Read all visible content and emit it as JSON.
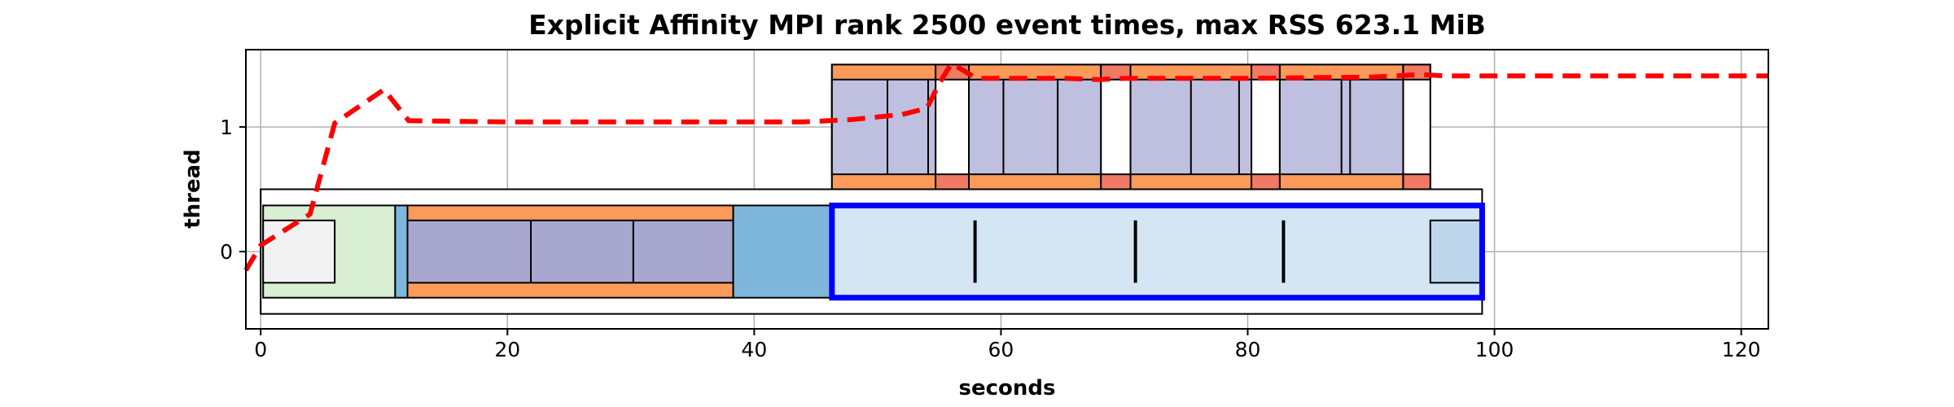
{
  "chart_data": {
    "type": "timeline",
    "title": "Explicit Affinity MPI rank 2500 event times, max RSS 623.1 MiB",
    "xlabel": "seconds",
    "ylabel": "thread",
    "xlim": [
      -1.2,
      122.2
    ],
    "ylim": [
      -0.62,
      1.62
    ],
    "x_ticks": [
      0,
      20,
      40,
      60,
      80,
      100,
      120
    ],
    "y_ticks": [
      0,
      1
    ],
    "grid": true,
    "colors": {
      "outline": "#000000",
      "memory_line": "#ff0000",
      "highlight": "#0000ff",
      "orange": "#fc9a5a",
      "salmon": "#f07a63",
      "purple": "#a8a7d0",
      "lavender": "#bfbfdf",
      "blue": "#7fb7dc",
      "light_blue": "#d4e5f3",
      "pale_blue": "#bdd6ec",
      "green": "#d9efd4",
      "gray": "#f2f2f2",
      "white": "#ffffff"
    },
    "boxes": [
      {
        "x0": 0,
        "x1": 99,
        "y0": -0.5,
        "y1": 0.5,
        "color": "white"
      },
      {
        "x0": 0.2,
        "x1": 10.9,
        "y0": -0.37,
        "y1": 0.37,
        "color": "green"
      },
      {
        "x0": 0.2,
        "x1": 6,
        "y0": -0.25,
        "y1": 0.25,
        "color": "gray"
      },
      {
        "x0": 10.9,
        "x1": 11.9,
        "y0": -0.37,
        "y1": 0.37,
        "color": "blue"
      },
      {
        "x0": 11.9,
        "x1": 38.3,
        "y0": -0.37,
        "y1": 0.37,
        "color": "orange"
      },
      {
        "x0": 11.9,
        "x1": 38.3,
        "y0": -0.25,
        "y1": 0.25,
        "color": "purple"
      },
      {
        "x0": 21.9,
        "x1": 21.9,
        "y0": -0.25,
        "y1": 0.25,
        "color": "outline"
      },
      {
        "x0": 30.2,
        "x1": 30.2,
        "y0": -0.25,
        "y1": 0.25,
        "color": "outline"
      },
      {
        "x0": 38.3,
        "x1": 46.3,
        "y0": -0.37,
        "y1": 0.37,
        "color": "blue"
      },
      {
        "x0": 46.3,
        "x1": 99,
        "y0": -0.37,
        "y1": 0.37,
        "color": "light_blue"
      },
      {
        "x0": 94.8,
        "x1": 99,
        "y0": -0.25,
        "y1": 0.25,
        "color": "pale_blue"
      },
      {
        "x0": 46.3,
        "x1": 94.8,
        "y0": 0.5,
        "y1": 1.5,
        "color": "white"
      },
      {
        "x0": 46.3,
        "x1": 54.7,
        "y0": 0.5,
        "y1": 1.5,
        "color": "orange"
      },
      {
        "x0": 46.3,
        "x1": 54.7,
        "y0": 0.62,
        "y1": 1.38,
        "color": "lavender"
      },
      {
        "x0": 54.7,
        "x1": 57.4,
        "y0": 0.5,
        "y1": 0.62,
        "color": "salmon"
      },
      {
        "x0": 54.7,
        "x1": 57.4,
        "y0": 1.38,
        "y1": 1.5,
        "color": "salmon"
      },
      {
        "x0": 57.4,
        "x1": 68.1,
        "y0": 0.5,
        "y1": 1.5,
        "color": "orange"
      },
      {
        "x0": 57.4,
        "x1": 68.1,
        "y0": 0.62,
        "y1": 1.38,
        "color": "lavender"
      },
      {
        "x0": 68.1,
        "x1": 70.5,
        "y0": 0.5,
        "y1": 0.62,
        "color": "salmon"
      },
      {
        "x0": 68.1,
        "x1": 70.5,
        "y0": 1.38,
        "y1": 1.5,
        "color": "salmon"
      },
      {
        "x0": 70.5,
        "x1": 80.3,
        "y0": 0.5,
        "y1": 1.5,
        "color": "orange"
      },
      {
        "x0": 70.5,
        "x1": 80.3,
        "y0": 0.62,
        "y1": 1.38,
        "color": "lavender"
      },
      {
        "x0": 80.3,
        "x1": 82.6,
        "y0": 0.5,
        "y1": 0.62,
        "color": "salmon"
      },
      {
        "x0": 80.3,
        "x1": 82.6,
        "y0": 1.38,
        "y1": 1.5,
        "color": "salmon"
      },
      {
        "x0": 82.6,
        "x1": 92.6,
        "y0": 0.5,
        "y1": 1.5,
        "color": "orange"
      },
      {
        "x0": 82.6,
        "x1": 92.6,
        "y0": 0.62,
        "y1": 1.38,
        "color": "lavender"
      },
      {
        "x0": 92.6,
        "x1": 94.8,
        "y0": 0.5,
        "y1": 0.62,
        "color": "salmon"
      },
      {
        "x0": 92.6,
        "x1": 94.8,
        "y0": 1.38,
        "y1": 1.5,
        "color": "salmon"
      }
    ],
    "dividers": [
      {
        "x": 50.8,
        "y0": 0.62,
        "y1": 1.38
      },
      {
        "x": 54.1,
        "y0": 0.62,
        "y1": 1.38
      },
      {
        "x": 60.2,
        "y0": 0.62,
        "y1": 1.38
      },
      {
        "x": 64.6,
        "y0": 0.62,
        "y1": 1.38
      },
      {
        "x": 75.4,
        "y0": 0.62,
        "y1": 1.38
      },
      {
        "x": 79.3,
        "y0": 0.62,
        "y1": 1.38
      },
      {
        "x": 87.6,
        "y0": 0.62,
        "y1": 1.38
      },
      {
        "x": 88.3,
        "y0": 0.62,
        "y1": 1.38
      }
    ],
    "markers": [
      {
        "x": 57.9,
        "y0": -0.25,
        "y1": 0.25
      },
      {
        "x": 70.9,
        "y0": -0.25,
        "y1": 0.25
      },
      {
        "x": 82.9,
        "y0": -0.25,
        "y1": 0.25
      }
    ],
    "highlight": {
      "x0": 46.3,
      "x1": 99,
      "y0": -0.37,
      "y1": 0.37
    },
    "series": [
      {
        "style": "dashed",
        "x": [
          -1.2,
          0,
          4,
          6,
          10,
          12,
          20,
          30,
          40,
          44,
          46,
          48,
          50,
          52,
          54,
          55,
          56,
          57,
          58,
          60,
          65,
          68,
          70,
          80,
          90,
          94,
          96,
          100,
          110,
          122.2
        ],
        "y": [
          -0.15,
          0.05,
          0.3,
          1.03,
          1.3,
          1.05,
          1.04,
          1.04,
          1.04,
          1.04,
          1.05,
          1.06,
          1.08,
          1.1,
          1.15,
          1.35,
          1.51,
          1.45,
          1.39,
          1.39,
          1.39,
          1.38,
          1.39,
          1.39,
          1.4,
          1.42,
          1.41,
          1.41,
          1.41,
          1.41
        ]
      }
    ]
  }
}
